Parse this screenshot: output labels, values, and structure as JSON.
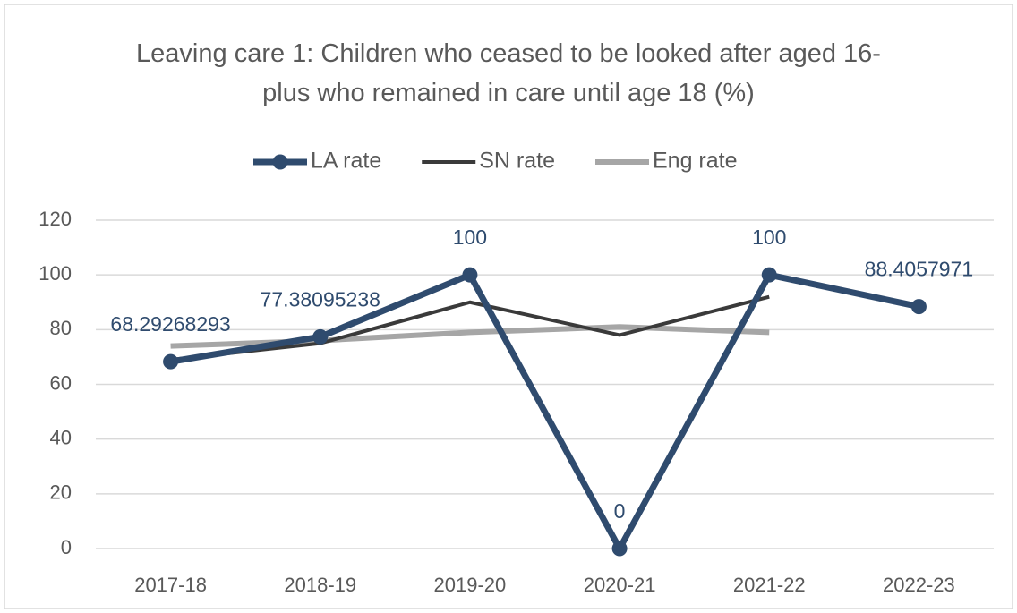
{
  "chart_data": {
    "type": "line",
    "title": "Leaving care 1: Children who ceased to be looked after aged 16-plus who remained in care until age 18 (%)",
    "categories": [
      "2017-18",
      "2018-19",
      "2019-20",
      "2020-21",
      "2021-22",
      "2022-23"
    ],
    "series": [
      {
        "name": "LA rate",
        "color": "#2f4b6e",
        "values": [
          68.29268293,
          77.38095238,
          100,
          0,
          100,
          88.4057971
        ],
        "markers": true,
        "data_labels": true
      },
      {
        "name": "SN rate",
        "color": "#3a3a3a",
        "values": [
          69,
          75,
          90,
          78,
          92,
          null
        ]
      },
      {
        "name": "Eng rate",
        "color": "#a6a6a6",
        "values": [
          74,
          76,
          79,
          81,
          79,
          null
        ]
      }
    ],
    "ylim": [
      0,
      120
    ],
    "yticks": [
      0,
      20,
      40,
      60,
      80,
      100,
      120
    ],
    "grid": true,
    "legend": "top"
  }
}
